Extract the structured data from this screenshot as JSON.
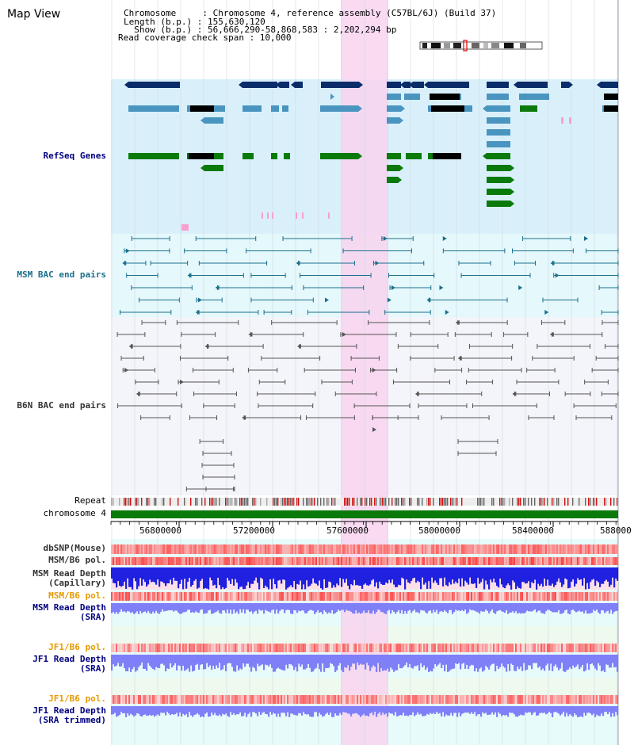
{
  "view_title": "Map View",
  "header": {
    "line1": "Chromosome     : Chromosome 4, reference assembly (C57BL/6J) (Build 37)",
    "line2": "Length (b.p.) : 155,630,120",
    "line3": "  Show (b.p.) : 56,666,290-58,868,583 : 2,202,294 bp",
    "line4": "Read coverage check span : 10,000"
  },
  "tracks": {
    "refseq": "RefSeq Genes",
    "msm_bac": "MSM BAC end pairs",
    "b6n_bac": "B6N BAC end pairs",
    "repeat": "Repeat",
    "chromosome": "chromosome 4",
    "dbsnp": "dbSNP(Mouse)",
    "msm_b6_pol_1": "MSM/B6 pol.",
    "msm_depth_cap_1": "MSM Read Depth",
    "msm_depth_cap_2": "(Capillary)",
    "msm_b6_pol_2": "MSM/B6 pol.",
    "msm_depth_sra_1": "MSM Read Depth",
    "msm_depth_sra_2": "(SRA)",
    "jf1_b6_pol_1": "JF1/B6 pol.",
    "jf1_depth_1": "JF1 Read Depth",
    "jf1_depth_2": "(SRA)",
    "jf1_b6_pol_2": "JF1/B6 pol.",
    "jf1_trim_1": "JF1 Read Depth",
    "jf1_trim_2": "(SRA trimmed)"
  },
  "axis_ticks": [
    "56800000",
    "57200000",
    "57600000",
    "58000000",
    "58400000",
    "588000"
  ],
  "colors": {
    "refseq_bg": "#d9f0fb",
    "msm_bg": "#e5f8fb",
    "b6n_bg": "#f4f4fb",
    "highlight": "#f8d3ee",
    "gene_navy": "#0a2d6a",
    "gene_blue": "#4a95c0",
    "gene_green": "#0a7a0a",
    "msm_line": "#1a6f8c",
    "b6n_line": "#555555",
    "chrom_green": "#0a7a0a",
    "depth_blue": "#2020e0",
    "depth_light": "#7f7ff8",
    "label_navy": "#00007f",
    "label_teal": "#1a6f8c",
    "label_orange": "#e69a00",
    "label_gray": "#333333"
  }
}
